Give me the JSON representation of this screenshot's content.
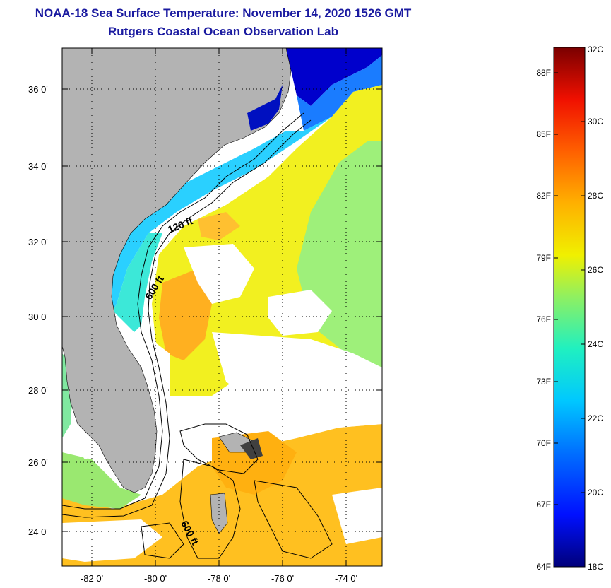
{
  "header": {
    "title": "NOAA-18 Sea Surface Temperature:  November 14, 2020 1526 GMT",
    "subtitle": "Rutgers Coastal Ocean Observation Lab"
  },
  "map": {
    "lon_ticks": [
      "-82 0'",
      "-80 0'",
      "-78 0'",
      "-76 0'",
      "-74 0'"
    ],
    "lat_ticks": [
      "36 0'",
      "34 0'",
      "32 0'",
      "30 0'",
      "28 0'",
      "26 0'",
      "24 0'"
    ],
    "lon_range": [
      -83,
      -73
    ],
    "lat_range": [
      23,
      37
    ],
    "contours": [
      {
        "label": "120 ft"
      },
      {
        "label": "600 ft"
      },
      {
        "label": "600 ft"
      }
    ],
    "colors": {
      "land": "#b3b3b3",
      "cloud": "#ffffff",
      "contour": "#000000"
    }
  },
  "colorbar": {
    "fahrenheit_labels": [
      "88F",
      "85F",
      "82F",
      "79F",
      "76F",
      "73F",
      "70F",
      "67F",
      "64F"
    ],
    "celsius_labels": [
      "32C",
      "30C",
      "28C",
      "26C",
      "24C",
      "22C",
      "20C",
      "18C"
    ],
    "range_celsius": [
      18,
      32
    ],
    "colors": [
      "#000080",
      "#0000ff",
      "#0080ff",
      "#00ffff",
      "#80ff80",
      "#ffff00",
      "#ff8000",
      "#ff0000",
      "#800000"
    ]
  }
}
